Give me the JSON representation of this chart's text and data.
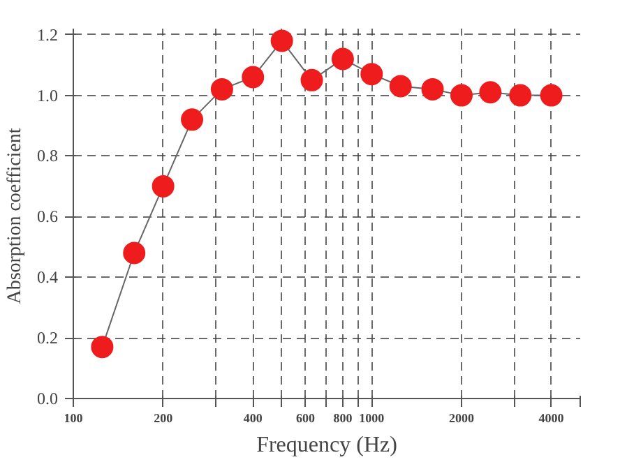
{
  "chart_data": {
    "type": "line",
    "xlabel": "Frequency (Hz)",
    "ylabel": "Absorption  coefficient",
    "log": "x",
    "x": [
      125,
      160,
      200,
      250,
      315,
      400,
      500,
      630,
      800,
      1000,
      1250,
      1600,
      2000,
      2500,
      3150,
      4000
    ],
    "series": [
      {
        "color": "#ee1c1c",
        "values": [
          0.17,
          0.48,
          0.7,
          0.92,
          1.02,
          1.06,
          1.18,
          1.05,
          1.12,
          1.07,
          1.03,
          1.02,
          1.0,
          1.01,
          1.0,
          1.0
        ]
      }
    ],
    "marker": "circle",
    "line_style": "solid",
    "grid": true,
    "xlim": [
      100,
      5000
    ],
    "ylim": [
      0,
      1.22
    ],
    "xticks": [
      100,
      200,
      {
        "value": 300,
        "label": null
      },
      400,
      {
        "value": 500,
        "label": null
      },
      600,
      {
        "value": 700,
        "label": null
      },
      800,
      {
        "value": 900,
        "label": null
      },
      1000,
      2000,
      {
        "value": 3000,
        "label": null
      },
      4000,
      {
        "value": 5000,
        "label": null
      }
    ],
    "yticks": [
      {
        "value": 0,
        "label": "0.0"
      },
      {
        "value": 0.2,
        "label": "0.2"
      },
      {
        "value": 0.4,
        "label": "0.4"
      },
      {
        "value": 0.6,
        "label": "0.6"
      },
      {
        "value": 0.8,
        "label": "0.8"
      },
      {
        "value": 1.0,
        "label": "1.0"
      },
      {
        "value": 1.2,
        "label": "1.2"
      }
    ]
  }
}
